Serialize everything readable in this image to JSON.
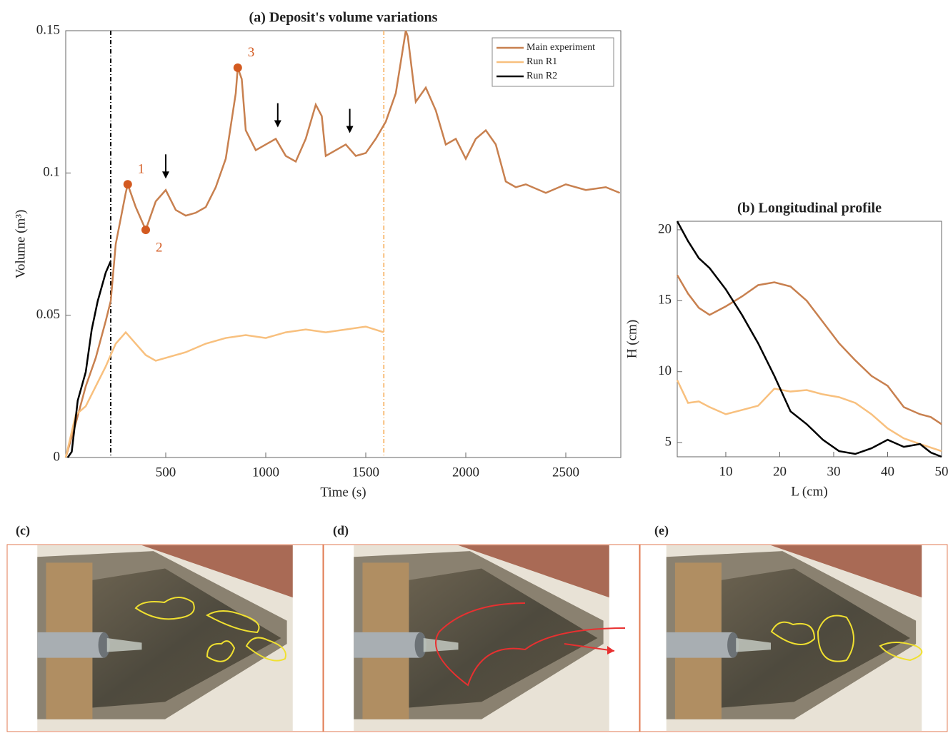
{
  "chart_data": [
    {
      "type": "line",
      "title": "(a) Deposit's volume variations",
      "xlabel": "Time (s)",
      "ylabel": "Volume (m³)",
      "xlim": [
        0,
        2775
      ],
      "ylim": [
        0,
        0.15
      ],
      "xticks": [
        500,
        1000,
        1500,
        2000,
        2500
      ],
      "yticks": [
        0,
        0.05,
        0.1,
        0.15
      ],
      "legend": "upper right",
      "series": [
        {
          "name": "Main experiment",
          "color": "#c8804f",
          "x": [
            0,
            50,
            100,
            150,
            200,
            225,
            250,
            300,
            310,
            350,
            400,
            450,
            500,
            550,
            600,
            650,
            700,
            750,
            800,
            850,
            860,
            880,
            900,
            950,
            1000,
            1050,
            1100,
            1150,
            1200,
            1250,
            1280,
            1300,
            1350,
            1400,
            1450,
            1500,
            1550,
            1600,
            1650,
            1700,
            1710,
            1750,
            1800,
            1850,
            1900,
            1950,
            2000,
            2050,
            2100,
            2150,
            2200,
            2250,
            2300,
            2400,
            2500,
            2600,
            2700,
            2770
          ],
          "values": [
            0,
            0.012,
            0.025,
            0.035,
            0.048,
            0.055,
            0.075,
            0.093,
            0.096,
            0.088,
            0.08,
            0.09,
            0.094,
            0.087,
            0.085,
            0.086,
            0.088,
            0.095,
            0.105,
            0.128,
            0.137,
            0.133,
            0.115,
            0.108,
            0.11,
            0.112,
            0.106,
            0.104,
            0.112,
            0.124,
            0.12,
            0.106,
            0.108,
            0.11,
            0.106,
            0.107,
            0.112,
            0.118,
            0.128,
            0.15,
            0.148,
            0.125,
            0.13,
            0.122,
            0.11,
            0.112,
            0.105,
            0.112,
            0.115,
            0.11,
            0.097,
            0.095,
            0.096,
            0.093,
            0.096,
            0.094,
            0.095,
            0.093
          ]
        },
        {
          "name": "Run R1",
          "color": "#f8c07e",
          "x": [
            0,
            50,
            100,
            150,
            200,
            250,
            300,
            350,
            400,
            450,
            500,
            550,
            600,
            700,
            800,
            900,
            1000,
            1100,
            1200,
            1300,
            1400,
            1500,
            1590
          ],
          "values": [
            0,
            0.015,
            0.018,
            0.025,
            0.032,
            0.04,
            0.044,
            0.04,
            0.036,
            0.034,
            0.035,
            0.036,
            0.037,
            0.04,
            0.042,
            0.043,
            0.042,
            0.044,
            0.045,
            0.044,
            0.045,
            0.046,
            0.044
          ]
        },
        {
          "name": "Run R2",
          "color": "#000000",
          "x": [
            10,
            30,
            60,
            100,
            130,
            160,
            200,
            225
          ],
          "values": [
            0,
            0.002,
            0.02,
            0.03,
            0.045,
            0.055,
            0.065,
            0.069
          ]
        }
      ],
      "vlines": [
        {
          "x": 225,
          "color": "#000000"
        },
        {
          "x": 1590,
          "color": "#f8c07e"
        }
      ],
      "annotations": [
        {
          "label": "1",
          "x": 310,
          "y": 0.096
        },
        {
          "label": "2",
          "x": 400,
          "y": 0.08
        },
        {
          "label": "3",
          "x": 860,
          "y": 0.137
        }
      ],
      "marker_color": "#d35a20",
      "arrows": [
        {
          "x": 500,
          "y": 0.098
        },
        {
          "x": 1060,
          "y": 0.116
        },
        {
          "x": 1420,
          "y": 0.114
        }
      ]
    },
    {
      "type": "line",
      "title": "(b) Longitudinal profile",
      "xlabel": "L (cm)",
      "ylabel": "H (cm)",
      "xlim": [
        1,
        50
      ],
      "ylim": [
        4,
        20.6
      ],
      "xticks": [
        10,
        20,
        30,
        40,
        50
      ],
      "yticks": [
        5,
        10,
        15,
        20
      ],
      "series": [
        {
          "color": "#c8804f",
          "x": [
            1,
            3,
            5,
            7,
            10,
            13,
            16,
            19,
            22,
            25,
            28,
            31,
            34,
            37,
            40,
            43,
            46,
            48,
            50
          ],
          "values": [
            16.8,
            15.5,
            14.5,
            14.0,
            14.6,
            15.3,
            16.1,
            16.3,
            16.0,
            15.0,
            13.5,
            12.0,
            10.8,
            9.7,
            9.0,
            7.5,
            7.0,
            6.8,
            6.3
          ]
        },
        {
          "color": "#f8c07e",
          "x": [
            1,
            3,
            5,
            7,
            10,
            13,
            16,
            19,
            22,
            25,
            28,
            31,
            34,
            37,
            40,
            43,
            46,
            50
          ],
          "values": [
            9.4,
            7.8,
            7.9,
            7.5,
            7.0,
            7.3,
            7.6,
            8.8,
            8.6,
            8.7,
            8.4,
            8.2,
            7.8,
            7.0,
            6.0,
            5.3,
            4.9,
            4.4
          ]
        },
        {
          "color": "#000000",
          "x": [
            1,
            3,
            5,
            7,
            10,
            13,
            16,
            19,
            22,
            25,
            28,
            31,
            34,
            37,
            40,
            43,
            46,
            48,
            50
          ],
          "values": [
            20.6,
            19.2,
            18.0,
            17.3,
            15.8,
            14.0,
            12.0,
            9.7,
            7.2,
            6.3,
            5.2,
            4.4,
            4.2,
            4.6,
            5.2,
            4.7,
            4.9,
            4.3,
            4.0
          ]
        }
      ]
    }
  ],
  "photos": {
    "labels": [
      "(c)",
      "(d)",
      "(e)"
    ]
  }
}
